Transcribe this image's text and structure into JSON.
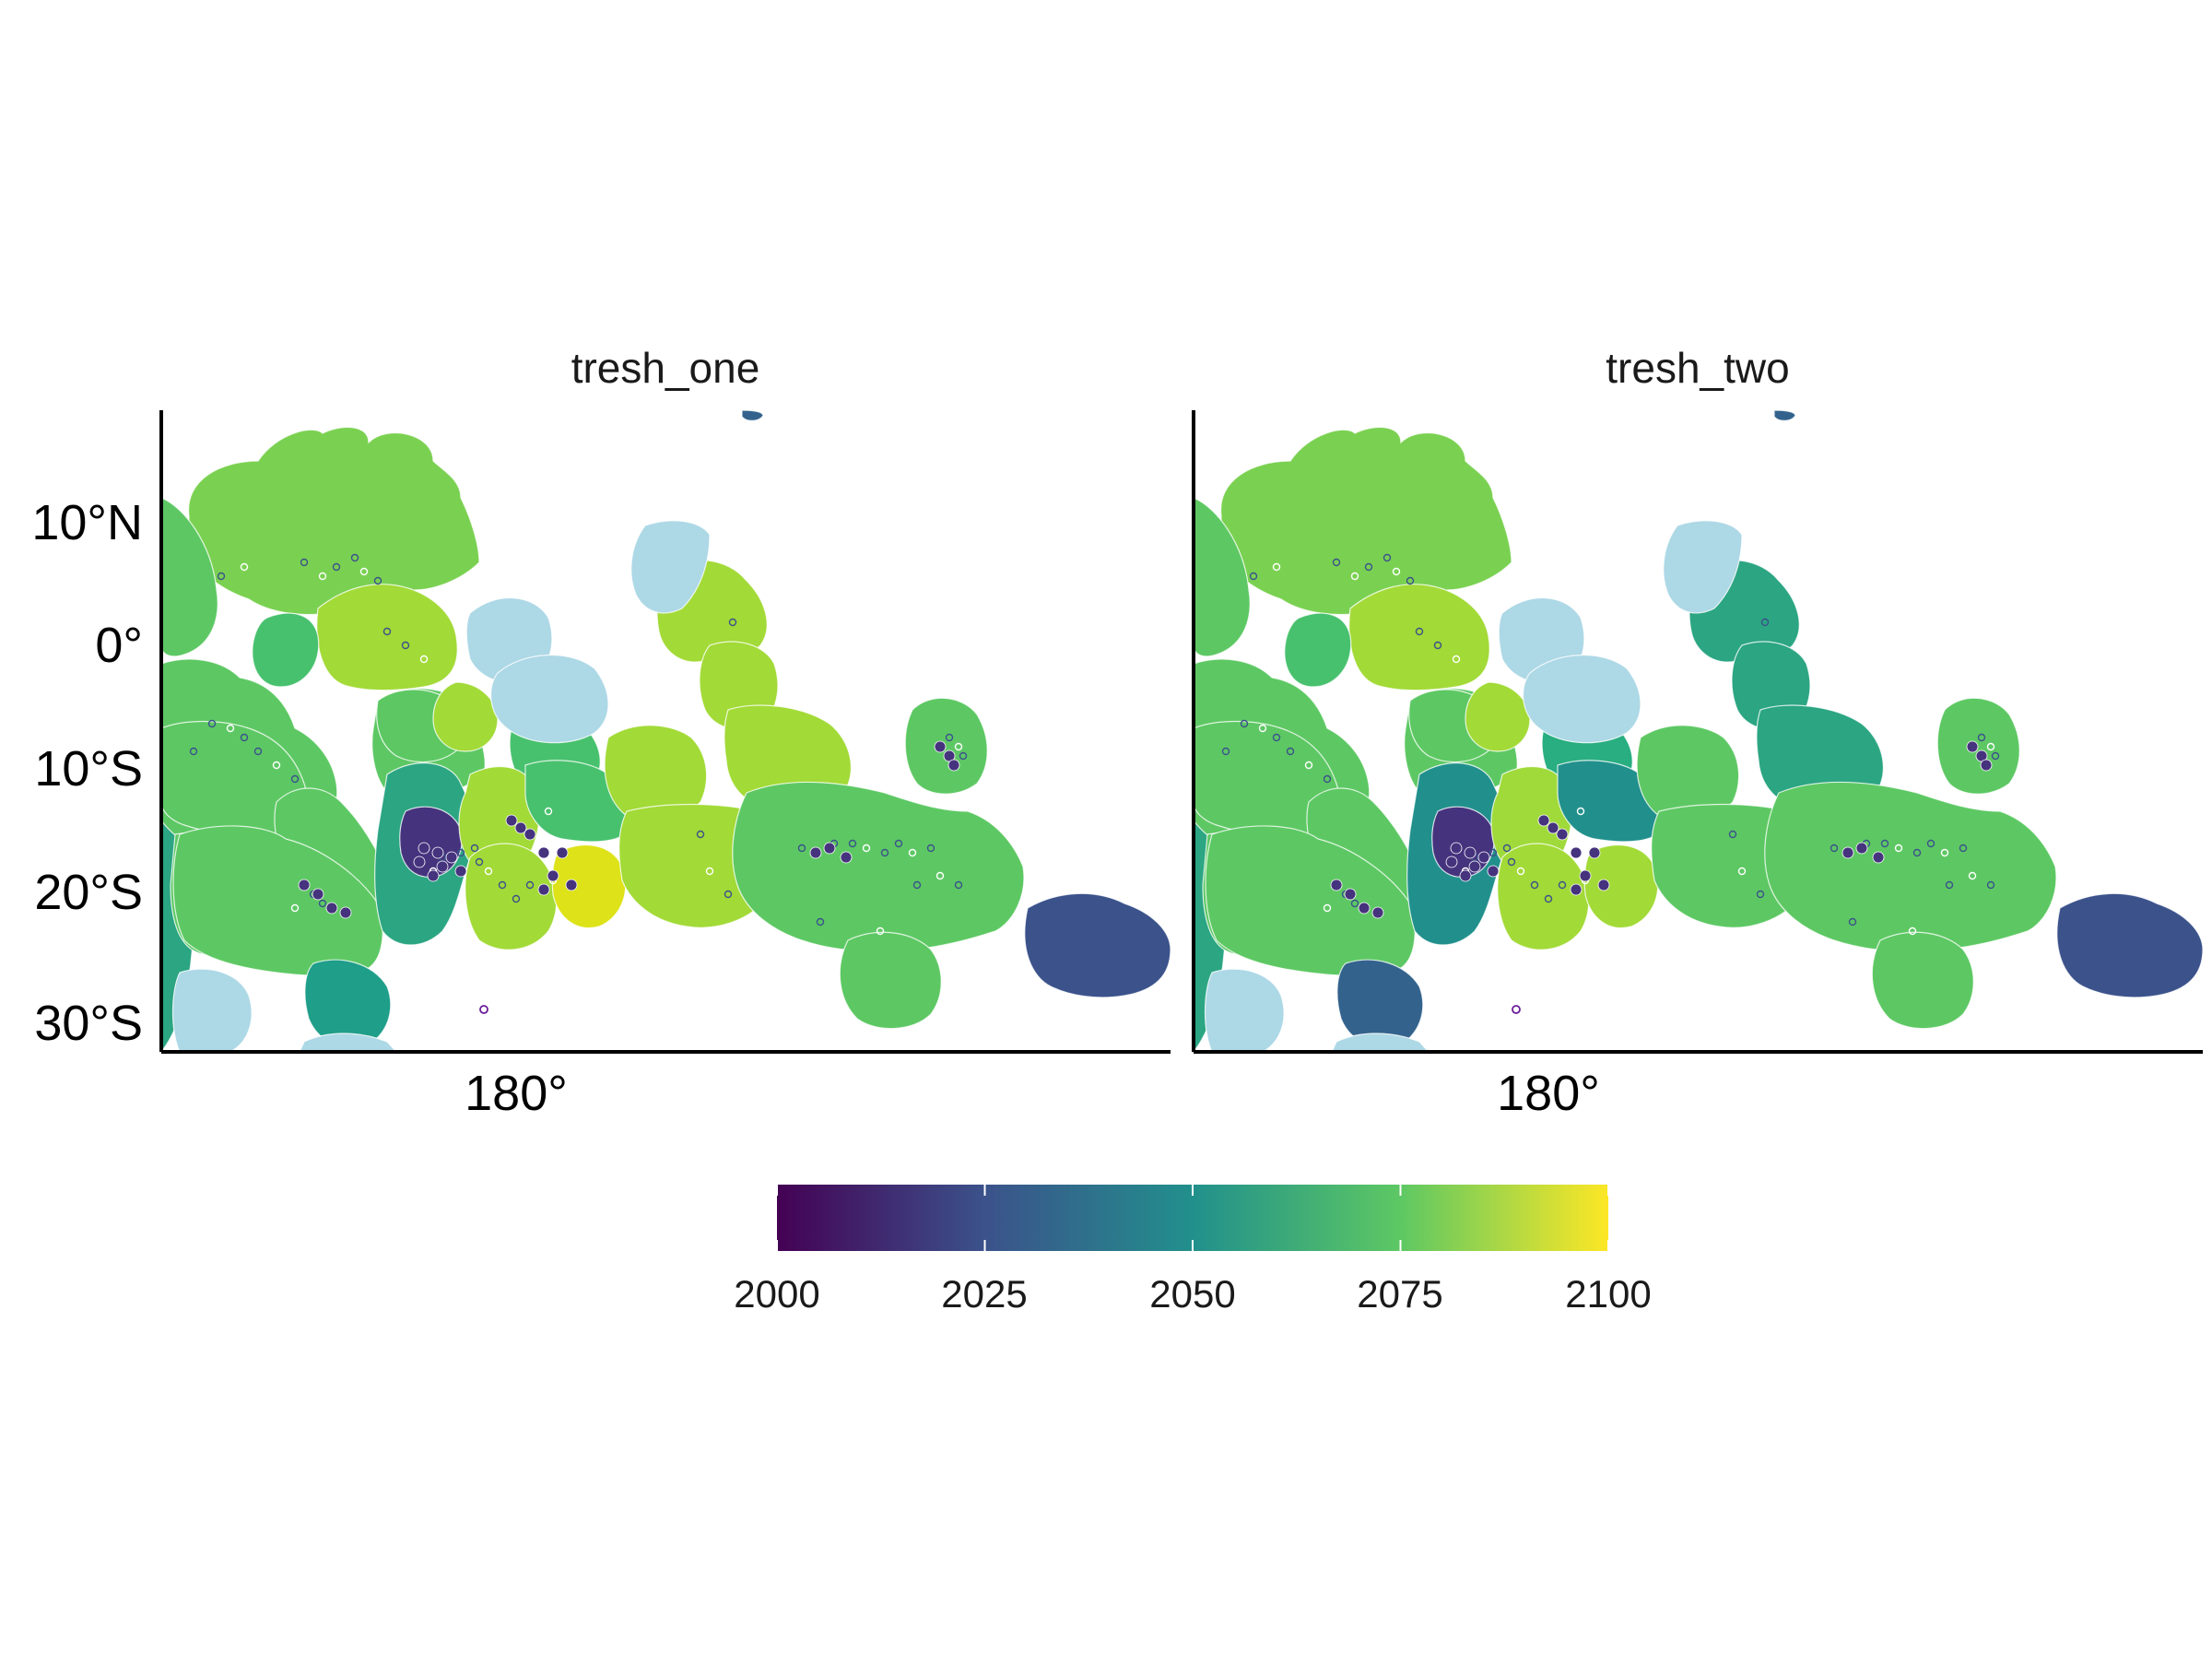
{
  "figure": {
    "panels": [
      {
        "title": "tresh_one"
      },
      {
        "title": "tresh_two"
      }
    ],
    "y_axis_labels": [
      "10°N",
      "0°",
      "10°S",
      "20°S",
      "30°S"
    ],
    "x_axis_labels": [
      "180°"
    ],
    "legend": {
      "ticks": [
        "2000",
        "2025",
        "2050",
        "2075",
        "2100"
      ],
      "min": 2000,
      "max": 2100
    }
  },
  "colors": {
    "no_data": "#ADD8E6",
    "viridis": [
      "#440154",
      "#3B528B",
      "#21908C",
      "#5DC863",
      "#FDE725"
    ]
  }
}
